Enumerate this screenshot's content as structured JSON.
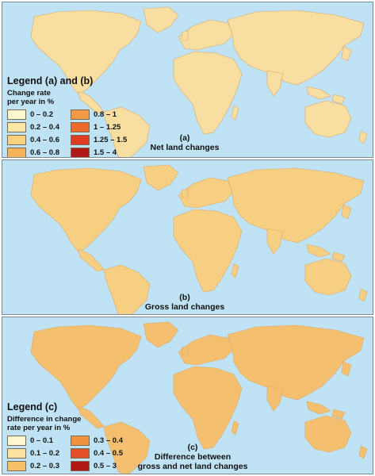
{
  "panels": [
    {
      "caption_line1": "(a)",
      "caption_line2": "Net land changes",
      "land_palette": [
        "#fdf4c8",
        "#f9e09a",
        "#f6c86c",
        "#f0ac50",
        "#e07a30",
        "#c84a20"
      ]
    },
    {
      "caption_line1": "(b)",
      "caption_line2": "Gross land changes",
      "land_palette": [
        "#fdf4c8",
        "#f9e09a",
        "#f6c86c",
        "#f0ac50",
        "#e07a30",
        "#d65a24",
        "#b82018"
      ]
    },
    {
      "caption_line1": "(c)",
      "caption_line2": "Difference between",
      "caption_line3": "gross and net land changes",
      "land_palette": [
        "#fdf4c8",
        "#f9e09a",
        "#f6c86c",
        "#f0ac50",
        "#e07a30",
        "#c84a20",
        "#a01010"
      ]
    }
  ],
  "legend_ab": {
    "title": "Legend (a) and (b)",
    "subtitle_line1": "Change rate",
    "subtitle_line2": "per year in %",
    "items": [
      {
        "label": "0 – 0.2",
        "color": "#fdf6cf"
      },
      {
        "label": "0.8 – 1",
        "color": "#f29a48"
      },
      {
        "label": "0.2 – 0.4",
        "color": "#fbe6a4"
      },
      {
        "label": "1 – 1.25",
        "color": "#ec6a2c"
      },
      {
        "label": "0.4 – 0.6",
        "color": "#f8d27c"
      },
      {
        "label": "1.25 – 1.5",
        "color": "#e03a22"
      },
      {
        "label": "0.6 – 0.8",
        "color": "#f5b45a"
      },
      {
        "label": "1.5 – 4",
        "color": "#b01818"
      }
    ]
  },
  "legend_c": {
    "title": "Legend (c)",
    "subtitle_line1": "Difference in change",
    "subtitle_line2": "rate per year in %",
    "items": [
      {
        "label": "0 – 0.1",
        "color": "#fdf6cf"
      },
      {
        "label": "0.3 – 0.4",
        "color": "#f0923e"
      },
      {
        "label": "0.1 – 0.2",
        "color": "#fbe2a0"
      },
      {
        "label": "0.4 – 0.5",
        "color": "#e2502a"
      },
      {
        "label": "0.2 – 0.3",
        "color": "#f6c068"
      },
      {
        "label": "0.5 – 3",
        "color": "#b01818"
      }
    ]
  },
  "colors": {
    "ocean": "#bfe3f4",
    "border": "#7a8a94"
  }
}
